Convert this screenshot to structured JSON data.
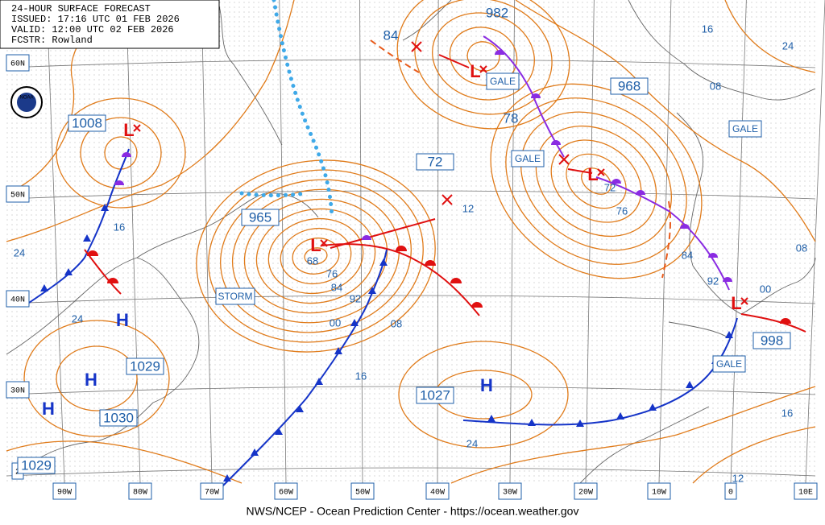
{
  "header": {
    "title": "24-HOUR SURFACE FORECAST",
    "issued": "ISSUED: 17:16 UTC 01 FEB 2026",
    "valid": "VALID: 12:00 UTC 02 FEB 2026",
    "forecaster": "FCSTR: Rowland"
  },
  "logo": "NOAA",
  "latitude_labels": [
    "60N",
    "50N",
    "40N",
    "30N",
    "2"
  ],
  "longitude_labels": [
    "90W",
    "80W",
    "70W",
    "60W",
    "50W",
    "40W",
    "30W",
    "20W",
    "10W",
    "0",
    "10E"
  ],
  "center_pressures": [
    1008,
    965,
    982,
    968,
    72,
    1029,
    1030,
    1029,
    1027,
    998
  ],
  "isobar_labels": [
    "84",
    "78",
    "16",
    "24",
    "08",
    "16",
    "24",
    "24",
    "12",
    "72",
    "76",
    "84",
    "92",
    "08",
    "00",
    "68",
    "76",
    "84",
    "92",
    "00",
    "08",
    "16",
    "24",
    "16",
    "12"
  ],
  "highs": [
    "H",
    "H",
    "H",
    "H"
  ],
  "lows": [
    "L",
    "L",
    "L",
    "L",
    "L"
  ],
  "warnings": [
    "GALE",
    "GALE",
    "GALE",
    "GALE",
    "STORM"
  ],
  "footer": "NWS/NCEP - Ocean Prediction Center - https://ocean.weather.gov"
}
